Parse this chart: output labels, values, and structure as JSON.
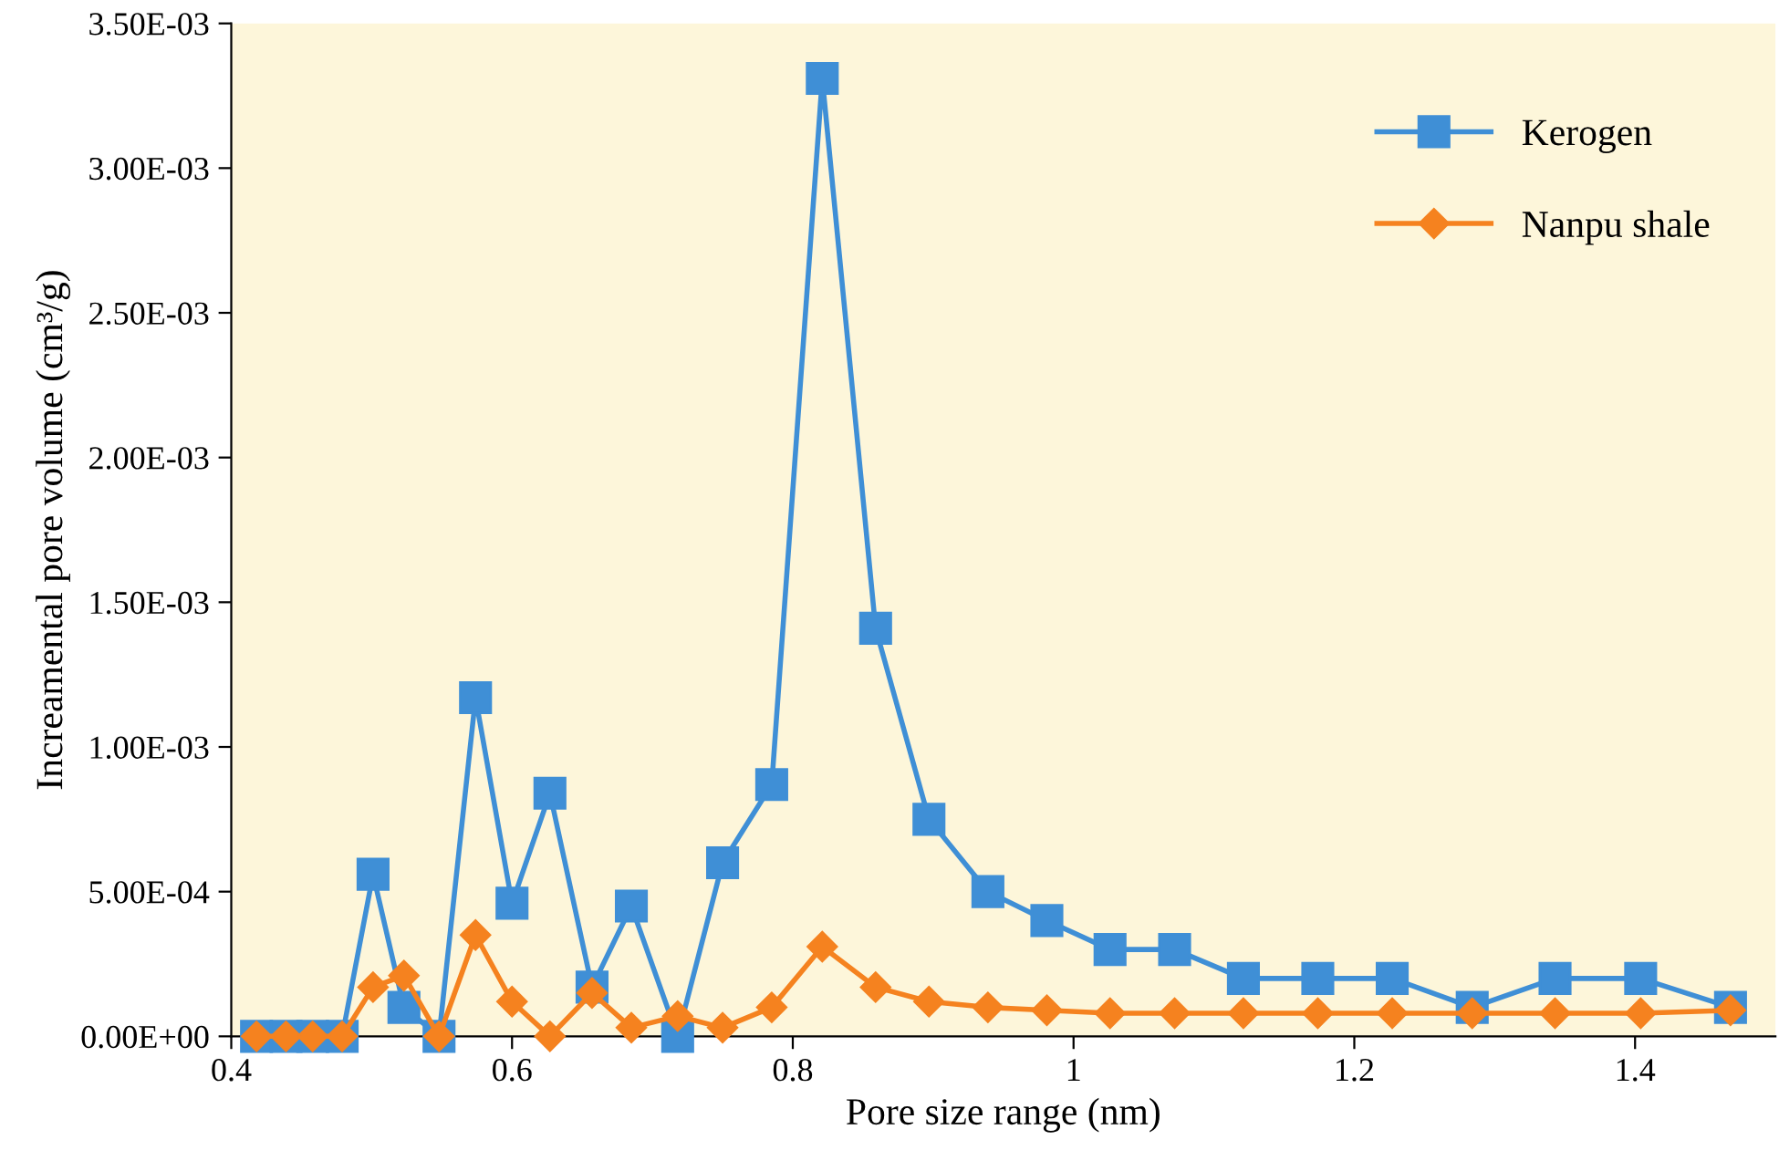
{
  "chart_data": {
    "type": "line",
    "xlabel": "Pore size range (nm)",
    "ylabel": "Increamental pore volume (cm³/g)",
    "xlim": [
      0.4,
      1.5
    ],
    "xticks": [
      0.4,
      0.6,
      0.8,
      1,
      1.2,
      1.4
    ],
    "ylim": [
      0,
      0.0035
    ],
    "yticks": [
      {
        "value": 0,
        "label": "0.00E+00"
      },
      {
        "value": 0.0005,
        "label": "5.00E-04"
      },
      {
        "value": 0.001,
        "label": "1.00E-03"
      },
      {
        "value": 0.0015,
        "label": "1.50E-03"
      },
      {
        "value": 0.002,
        "label": "2.00E-03"
      },
      {
        "value": 0.0025,
        "label": "2.50E-03"
      },
      {
        "value": 0.003,
        "label": "3.00E-03"
      },
      {
        "value": 0.0035,
        "label": "3.50E-03"
      }
    ],
    "grid": false,
    "legend": "top right",
    "x": [
      0.418,
      0.439,
      0.458,
      0.479,
      0.501,
      0.523,
      0.548,
      0.574,
      0.6,
      0.627,
      0.657,
      0.685,
      0.718,
      0.75,
      0.785,
      0.821,
      0.859,
      0.897,
      0.939,
      0.981,
      1.026,
      1.072,
      1.121,
      1.174,
      1.227,
      1.284,
      1.343,
      1.404,
      1.468
    ],
    "series": [
      {
        "name": "Kerogen",
        "color": "#3f8fd6",
        "marker": "square",
        "values": [
          0,
          0,
          0,
          0,
          0.00056,
          0.0001,
          0,
          0.00117,
          0.00046,
          0.00084,
          0.00017,
          0.00045,
          0,
          0.0006,
          0.00087,
          0.00331,
          0.00141,
          0.00075,
          0.0005,
          0.0004,
          0.0003,
          0.0003,
          0.0002,
          0.0002,
          0.0002,
          0.0001,
          0.0002,
          0.0002,
          0.0001
        ]
      },
      {
        "name": "Nanpu shale",
        "color": "#f5821f",
        "marker": "diamond",
        "values": [
          0,
          0,
          0,
          0,
          0.00017,
          0.00021,
          0,
          0.00035,
          0.00012,
          0,
          0.00015,
          3e-05,
          7e-05,
          3e-05,
          0.0001,
          0.00031,
          0.00017,
          0.00012,
          0.0001,
          9e-05,
          8e-05,
          8e-05,
          8e-05,
          8e-05,
          8e-05,
          8e-05,
          8e-05,
          8e-05,
          9e-05
        ]
      }
    ]
  }
}
